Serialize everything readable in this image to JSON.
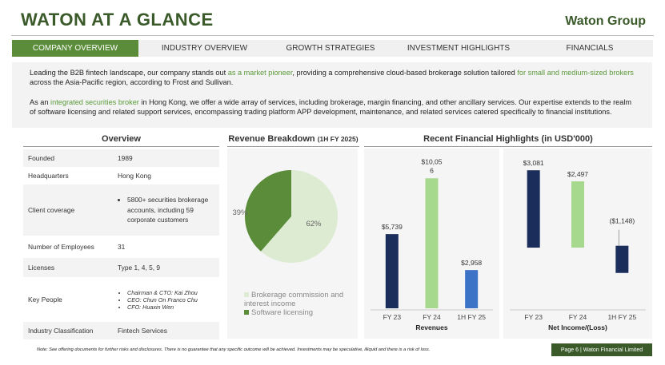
{
  "header": {
    "title": "WATON AT A GLANCE",
    "brand": "Waton Group"
  },
  "tabs": [
    {
      "label": "COMPANY OVERVIEW",
      "active": true
    },
    {
      "label": "INDUSTRY OVERVIEW",
      "active": false
    },
    {
      "label": "GROWTH STRATEGIES",
      "active": false
    },
    {
      "label": "INVESTMENT HIGHLIGHTS",
      "active": false
    },
    {
      "label": "FINANCIALS",
      "active": false
    }
  ],
  "intro": {
    "p1": {
      "a": "Leading the B2B fintech landscape, our company stands out ",
      "b": "as a market pioneer",
      "c": ", providing a comprehensive cloud-based brokerage solution tailored ",
      "d": "for small and medium-sized brokers",
      "e": " across the Asia-Pacific region, according to Frost and Sullivan."
    },
    "p2": {
      "a": "As an ",
      "b": "integrated securities broker",
      "c": " in Hong Kong,  we offer a wide array of services, including brokerage, margin financing, and other ancillary services. Our expertise extends to the realm of software licensing and related support services, encompassing trading platform APP development, maintenance, and related services catered specifically to financial institutions."
    }
  },
  "overview": {
    "heading": "Overview",
    "rows": {
      "founded": {
        "k": "Founded",
        "v": "1989"
      },
      "hq": {
        "k": "Headquarters",
        "v": "Hong Kong"
      },
      "coverage": {
        "k": "Client coverage",
        "v": "5800+ securities brokerage accounts, including 59 corporate customers"
      },
      "employees": {
        "k": "Number of Employees",
        "v": "31"
      },
      "licenses": {
        "k": "Licenses",
        "v": "Type 1, 4, 5, 9"
      },
      "people": {
        "k": "Key People",
        "items": [
          "Chairman & CTO: Kai Zhou",
          "CEO: Chun On Franco Chu",
          "CFO: Huaxin Wen"
        ]
      },
      "industry": {
        "k": "Industry Classification",
        "v": "Fintech Services"
      }
    }
  },
  "colors": {
    "brand_green": "#3a5a2a",
    "tab_active": "#5b8c3a",
    "highlight": "#5b9a3a",
    "pie_light": "#dcebd2",
    "pie_dark": "#5b8c3a",
    "bar_navy": "#1b2d5a",
    "bar_lightgreen": "#a6d98d",
    "bar_blue": "#3d73c7"
  },
  "chart_data": [
    {
      "type": "pie",
      "title": "Revenue Breakdown",
      "subtitle": "(1H FY 2025)",
      "slices": [
        {
          "label": "Brokerage commission and interest income",
          "value": 62,
          "label_text": "62%"
        },
        {
          "label": "Software licensing",
          "value": 39,
          "label_text": "39%"
        }
      ],
      "legend_position": "bottom"
    },
    {
      "type": "bar",
      "title": "Recent Financial Highlights (in USD'000)",
      "xlabel": "Revenues",
      "categories": [
        "FY 23",
        "FY 24",
        "1H FY 25"
      ],
      "values": [
        5739,
        10056,
        2958
      ],
      "data_labels": [
        "$5,739",
        "$10,056",
        "$2,958"
      ],
      "ylim": [
        0,
        11000
      ]
    },
    {
      "type": "bar",
      "subtype": "waterfall",
      "xlabel": "Net Income/(Loss)",
      "categories": [
        "FY 23",
        "FY 24",
        "1H FY 25"
      ],
      "values": [
        3081,
        2497,
        -1148
      ],
      "data_labels": [
        "$3,081",
        "$2,497",
        "($1,148)"
      ],
      "ylim": [
        -4200,
        3300
      ]
    }
  ],
  "footer": {
    "note": "Note: See offering documents for further risks and disclosures. There is no guarantee that any specific outcome will be achieved. Investments may be speculative, illiquid and there is a risk of loss.",
    "page": "Page 6 | Waton Financial Limited"
  }
}
